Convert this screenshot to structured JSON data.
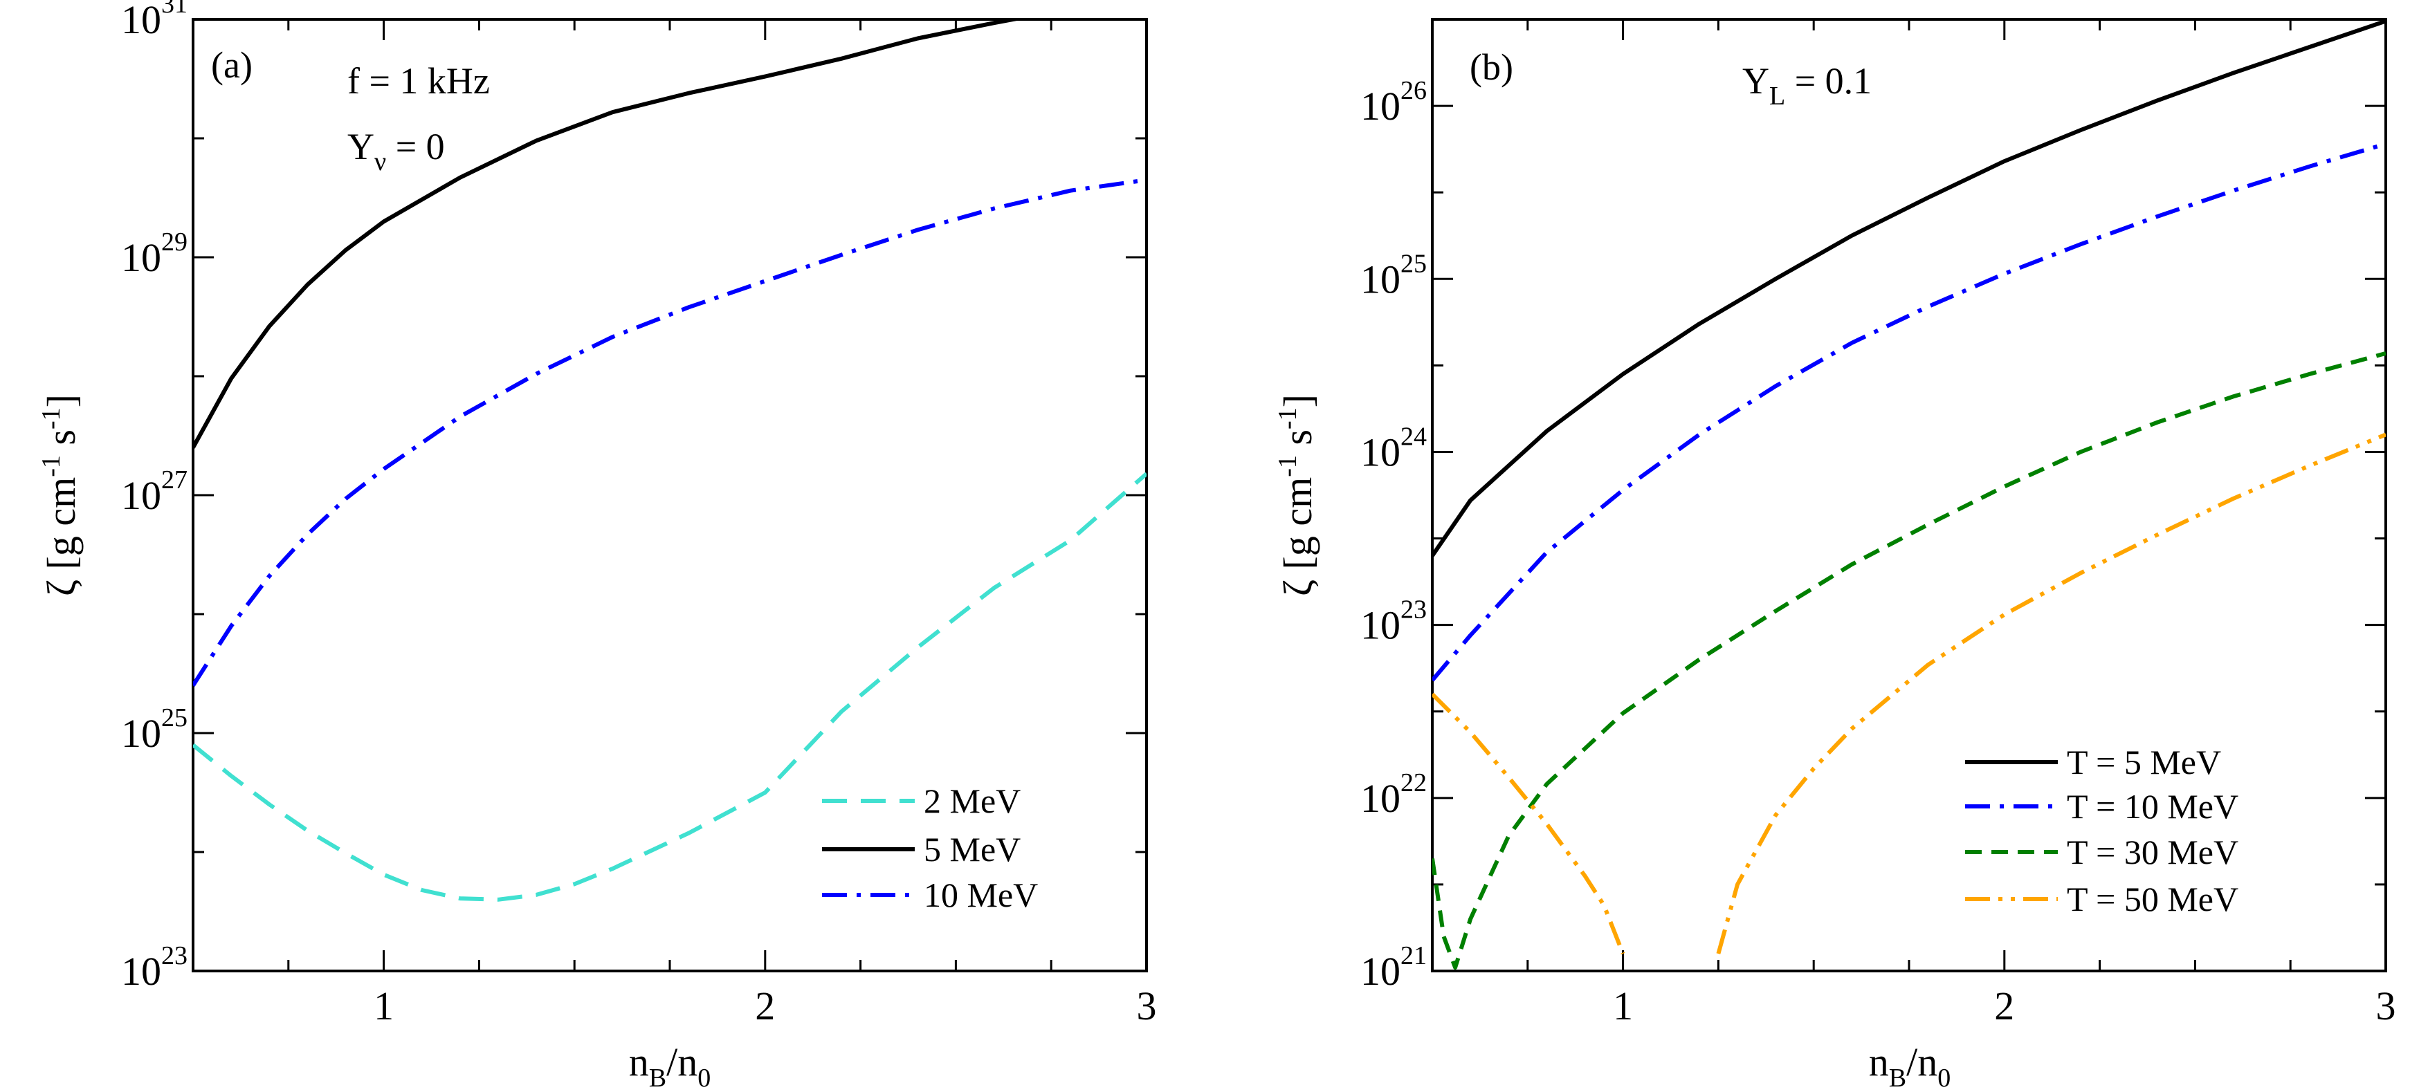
{
  "panels": [
    {
      "id": "a",
      "panel_label": "(a)",
      "annotations": [
        {
          "id": "freq",
          "main": "f = 1 kHz",
          "sub": ""
        },
        {
          "id": "ynu",
          "main": "Y",
          "sub": "ν",
          "rest": " = 0"
        }
      ],
      "ylabel": {
        "main": "ζ [g cm",
        "sup1": "-1",
        "mid": " s",
        "sup2": "-1",
        "end": "]"
      },
      "xlabel": {
        "n": "n",
        "B": "B",
        "slash": "/n",
        "zero": "0"
      },
      "legend": [
        "2  MeV",
        "5  MeV",
        "10 MeV"
      ]
    },
    {
      "id": "b",
      "panel_label": "(b)",
      "annotations": [
        {
          "id": "yl",
          "main": "Y",
          "sub": "L",
          "rest": " = 0.1"
        }
      ],
      "ylabel": {
        "main": "ζ [g cm",
        "sup1": "-1",
        "mid": " s",
        "sup2": "-1",
        "end": "]"
      },
      "xlabel": {
        "n": "n",
        "B": "B",
        "slash": "/n",
        "zero": "0"
      },
      "legend": [
        "T =  5  MeV",
        "T = 10 MeV",
        "T = 30 MeV",
        "T = 50 MeV"
      ]
    }
  ],
  "chart_data": [
    {
      "type": "line",
      "title": "",
      "xlabel": "n_B/n_0",
      "ylabel": "ζ [g cm^-1 s^-1]",
      "xlim": [
        0.5,
        3.0
      ],
      "ylim_log10": [
        23,
        31
      ],
      "yscale": "log",
      "xticks": [
        1,
        2,
        3
      ],
      "yticks_log10": [
        23,
        25,
        27,
        29,
        31
      ],
      "legend_position": "bottom-right",
      "series": [
        {
          "name": "2  MeV",
          "color": "#40E0D0",
          "style": "dashed",
          "x": [
            0.5,
            0.6,
            0.7,
            0.8,
            0.9,
            1.0,
            1.1,
            1.2,
            1.3,
            1.4,
            1.5,
            1.6,
            1.8,
            2.0,
            2.2,
            2.4,
            2.6,
            2.8,
            3.0
          ],
          "log10_y": [
            24.9,
            24.64,
            24.4,
            24.18,
            23.99,
            23.81,
            23.68,
            23.61,
            23.6,
            23.64,
            23.73,
            23.86,
            24.16,
            24.5,
            25.18,
            25.72,
            26.22,
            26.62,
            27.18
          ]
        },
        {
          "name": "5  MeV",
          "color": "#000000",
          "style": "solid",
          "x": [
            0.5,
            0.6,
            0.7,
            0.8,
            0.9,
            1.0,
            1.2,
            1.4,
            1.6,
            1.8,
            2.0,
            2.2,
            2.4,
            2.6,
            2.8,
            3.0
          ],
          "log10_y": [
            27.4,
            27.98,
            28.42,
            28.77,
            29.06,
            29.3,
            29.67,
            29.98,
            30.22,
            30.38,
            30.52,
            30.67,
            30.84,
            30.97,
            31.09,
            31.19
          ]
        },
        {
          "name": "10 MeV",
          "color": "#0000FF",
          "style": "dashdot",
          "x": [
            0.5,
            0.6,
            0.7,
            0.8,
            0.9,
            1.0,
            1.2,
            1.4,
            1.6,
            1.8,
            2.0,
            2.2,
            2.4,
            2.6,
            2.8,
            3.0
          ],
          "log10_y": [
            25.4,
            25.9,
            26.32,
            26.67,
            26.97,
            27.22,
            27.66,
            28.02,
            28.33,
            28.58,
            28.8,
            29.02,
            29.23,
            29.41,
            29.56,
            29.65
          ]
        }
      ]
    },
    {
      "type": "line",
      "title": "",
      "xlabel": "n_B/n_0",
      "ylabel": "ζ [g cm^-1 s^-1]",
      "xlim": [
        0.5,
        3.0
      ],
      "ylim_log10": [
        21,
        26.5
      ],
      "yscale": "log",
      "xticks": [
        1,
        2,
        3
      ],
      "yticks_log10": [
        21,
        22,
        23,
        24,
        25,
        26
      ],
      "legend_position": "bottom-right",
      "series": [
        {
          "name": "T =  5  MeV",
          "color": "#000000",
          "style": "solid",
          "x": [
            0.5,
            0.6,
            0.8,
            1.0,
            1.2,
            1.4,
            1.6,
            1.8,
            2.0,
            2.2,
            2.4,
            2.6,
            2.8,
            3.0
          ],
          "log10_y": [
            23.4,
            23.72,
            24.12,
            24.45,
            24.74,
            25.0,
            25.25,
            25.47,
            25.68,
            25.86,
            26.03,
            26.19,
            26.34,
            26.49
          ]
        },
        {
          "name": "T = 10 MeV",
          "color": "#0000FF",
          "style": "dashdot",
          "x": [
            0.5,
            0.6,
            0.8,
            1.0,
            1.2,
            1.4,
            1.6,
            1.8,
            2.0,
            2.2,
            2.4,
            2.6,
            2.8,
            3.0
          ],
          "log10_y": [
            22.68,
            22.94,
            23.42,
            23.78,
            24.1,
            24.38,
            24.63,
            24.84,
            25.03,
            25.2,
            25.36,
            25.51,
            25.65,
            25.78
          ]
        },
        {
          "name": "T = 30 MeV",
          "color": "#008000",
          "style": "dashed",
          "x": [
            0.5,
            0.53,
            0.56,
            0.6,
            0.7,
            0.8,
            1.0,
            1.2,
            1.4,
            1.6,
            1.8,
            2.0,
            2.2,
            2.4,
            2.6,
            2.8,
            3.0
          ],
          "log10_y": [
            21.65,
            21.2,
            21.02,
            21.3,
            21.78,
            22.08,
            22.49,
            22.8,
            23.08,
            23.35,
            23.58,
            23.8,
            24.0,
            24.17,
            24.32,
            24.45,
            24.57
          ]
        },
        {
          "name": "T = 50 MeV",
          "color": "#FFA500",
          "style": "dashdotdot",
          "segments": [
            {
              "x": [
                0.5,
                0.6,
                0.7,
                0.8,
                0.9,
                0.95,
                1.0
              ],
              "log10_y": [
                22.6,
                22.38,
                22.12,
                21.85,
                21.55,
                21.38,
                21.1
              ]
            },
            {
              "x": [
                1.25,
                1.3,
                1.4,
                1.5,
                1.6,
                1.8,
                2.0,
                2.2,
                2.4,
                2.6,
                2.8,
                3.0
              ],
              "log10_y": [
                21.1,
                21.5,
                21.9,
                22.17,
                22.4,
                22.77,
                23.06,
                23.3,
                23.52,
                23.73,
                23.92,
                24.1
              ]
            }
          ]
        }
      ]
    }
  ]
}
